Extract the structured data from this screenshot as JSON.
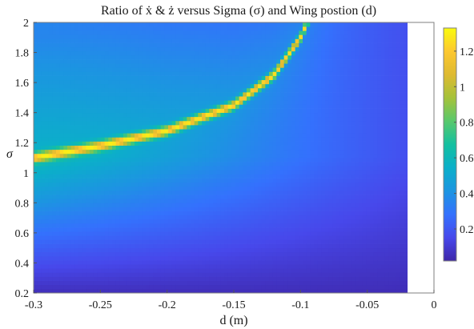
{
  "chart_data": {
    "type": "heatmap",
    "title": "Ratio of ẋ & ż versus Sigma (σ) and Wing postion (d)",
    "xlabel": "d (m)",
    "ylabel": "σ",
    "xlim": [
      -0.3,
      0
    ],
    "ylim": [
      0.2,
      2
    ],
    "data_x_range": [
      -0.3,
      -0.02
    ],
    "xticks": [
      "-0.3",
      "-0.25",
      "-0.2",
      "-0.15",
      "-0.1",
      "-0.05",
      "0"
    ],
    "yticks": [
      "0.2",
      "0.4",
      "0.6",
      "0.8",
      "1",
      "1.2",
      "1.4",
      "1.6",
      "1.8",
      "2"
    ],
    "colorbar": {
      "range": [
        0.02,
        1.33
      ],
      "ticks": [
        "0.2",
        "0.4",
        "0.6",
        "0.8",
        "1",
        "1.2"
      ],
      "colormap": "parula"
    },
    "ridge": {
      "description_points_d_sigma": [
        [
          -0.3,
          1.1
        ],
        [
          -0.25,
          1.18
        ],
        [
          -0.2,
          1.28
        ],
        [
          -0.15,
          1.45
        ],
        [
          -0.12,
          1.65
        ],
        [
          -0.1,
          1.9
        ],
        [
          -0.095,
          2.0
        ]
      ],
      "peak_value": 1.3
    },
    "grid": false,
    "colorbar_location": "right"
  }
}
